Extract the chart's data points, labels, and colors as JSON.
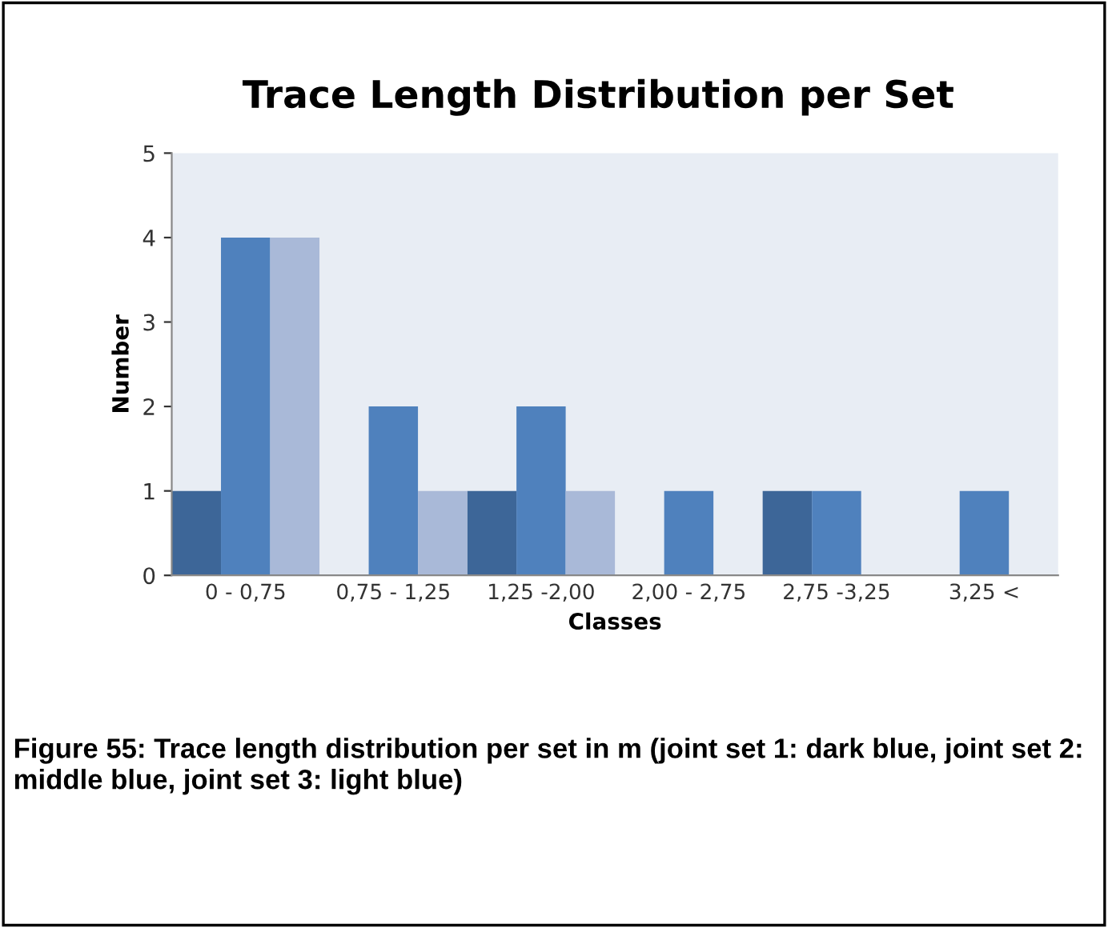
{
  "chart_data": {
    "type": "bar",
    "title": "Trace Length Distribution per Set",
    "xlabel": "Classes",
    "ylabel": "Number",
    "categories": [
      "0 - 0,75",
      "0,75 - 1,25",
      "1,25 -2,00",
      "2,00 - 2,75",
      "2,75 -3,25",
      "3,25 <"
    ],
    "series": [
      {
        "color": "#3d6698",
        "values": [
          1,
          0,
          1,
          0,
          1,
          0
        ]
      },
      {
        "color": "#4f81bd",
        "values": [
          4,
          2,
          2,
          1,
          1,
          1
        ]
      },
      {
        "color": "#a9b9d8",
        "values": [
          4,
          1,
          1,
          0,
          0,
          0
        ]
      }
    ],
    "ylim": [
      0,
      5
    ],
    "yticks": [
      0,
      1,
      2,
      3,
      4,
      5
    ],
    "grid": false,
    "legend": false,
    "annotations": [
      "Figure 55: Trace length distribution per set in m (joint set 1: dark blue, joint set 2: middle blue, joint set 3: light blue)"
    ]
  }
}
